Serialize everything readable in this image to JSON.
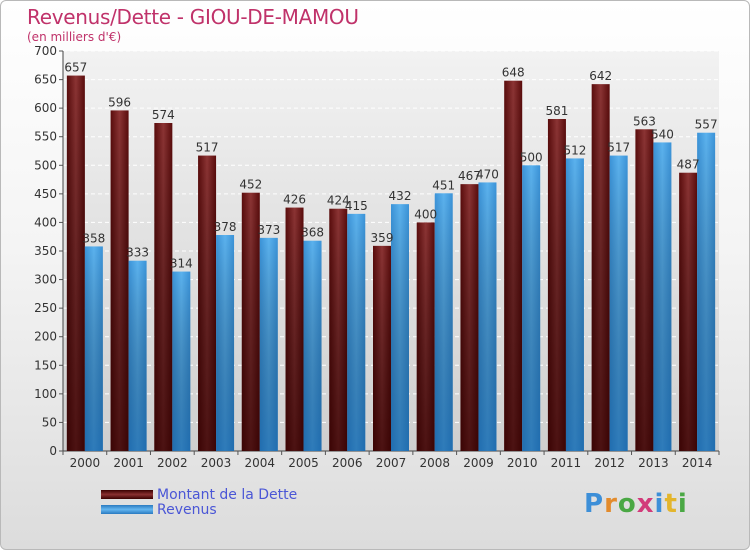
{
  "header": {
    "title": "Revenus/Dette - GIOU-DE-MAMOU",
    "subtitle": "(en milliers d'€)"
  },
  "chart_data": {
    "type": "bar",
    "categories": [
      "2000",
      "2001",
      "2002",
      "2003",
      "2004",
      "2005",
      "2006",
      "2007",
      "2008",
      "2009",
      "2010",
      "2011",
      "2012",
      "2013",
      "2014"
    ],
    "series": [
      {
        "name": "Montant de la Dette",
        "values": [
          657,
          596,
          574,
          517,
          452,
          426,
          424,
          359,
          400,
          467,
          648,
          581,
          642,
          563,
          487
        ],
        "color": "#7a2222"
      },
      {
        "name": "Revenus",
        "values": [
          358,
          333,
          314,
          378,
          373,
          368,
          415,
          432,
          451,
          470,
          500,
          512,
          517,
          540,
          557
        ],
        "color": "#4aa3e6"
      }
    ],
    "ylim": [
      0,
      700
    ],
    "yticks": [
      0,
      50,
      100,
      150,
      200,
      250,
      300,
      350,
      400,
      450,
      500,
      550,
      600,
      650,
      700
    ],
    "grid": true,
    "legend_position": "bottom-left"
  },
  "legend": {
    "dette_label": "Montant de la Dette",
    "revenus_label": "Revenus"
  },
  "logo": {
    "text_p": "P",
    "text_r": "r",
    "text_o": "o",
    "text_x": "x",
    "text_i": "i",
    "text_t": "t",
    "text_i2": "i"
  }
}
